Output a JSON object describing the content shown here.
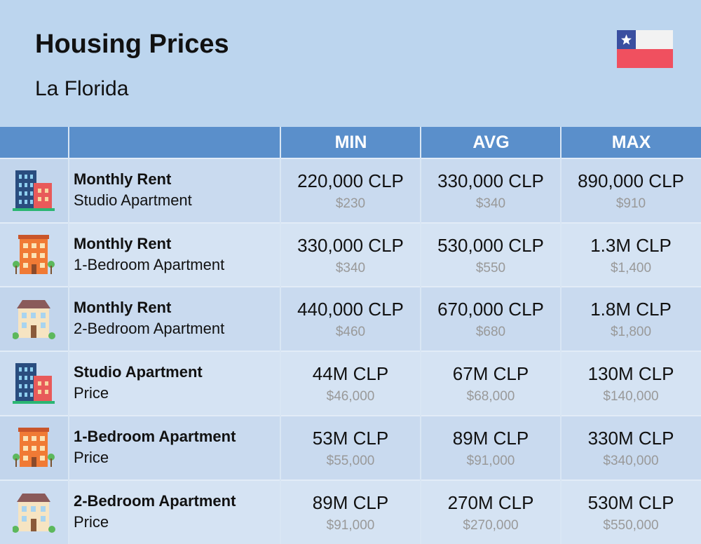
{
  "header": {
    "title": "Housing Prices",
    "subtitle": "La Florida"
  },
  "table": {
    "columns": [
      "MIN",
      "AVG",
      "MAX"
    ],
    "rows": [
      {
        "title": "Monthly Rent",
        "subtitle": "Studio Apartment",
        "cells": [
          {
            "local": "220,000 CLP",
            "usd": "$230"
          },
          {
            "local": "330,000 CLP",
            "usd": "$340"
          },
          {
            "local": "890,000 CLP",
            "usd": "$910"
          }
        ]
      },
      {
        "title": "Monthly Rent",
        "subtitle": "1-Bedroom Apartment",
        "cells": [
          {
            "local": "330,000 CLP",
            "usd": "$340"
          },
          {
            "local": "530,000 CLP",
            "usd": "$550"
          },
          {
            "local": "1.3M CLP",
            "usd": "$1,400"
          }
        ]
      },
      {
        "title": "Monthly Rent",
        "subtitle": "2-Bedroom Apartment",
        "cells": [
          {
            "local": "440,000 CLP",
            "usd": "$460"
          },
          {
            "local": "670,000 CLP",
            "usd": "$680"
          },
          {
            "local": "1.8M CLP",
            "usd": "$1,800"
          }
        ]
      },
      {
        "title": "Studio Apartment",
        "subtitle": "Price",
        "cells": [
          {
            "local": "44M CLP",
            "usd": "$46,000"
          },
          {
            "local": "67M CLP",
            "usd": "$68,000"
          },
          {
            "local": "130M CLP",
            "usd": "$140,000"
          }
        ]
      },
      {
        "title": "1-Bedroom Apartment",
        "subtitle": "Price",
        "cells": [
          {
            "local": "53M CLP",
            "usd": "$55,000"
          },
          {
            "local": "89M CLP",
            "usd": "$91,000"
          },
          {
            "local": "330M CLP",
            "usd": "$340,000"
          }
        ]
      },
      {
        "title": "2-Bedroom Apartment",
        "subtitle": "Price",
        "cells": [
          {
            "local": "89M CLP",
            "usd": "$91,000"
          },
          {
            "local": "270M CLP",
            "usd": "$270,000"
          },
          {
            "local": "530M CLP",
            "usd": "$550,000"
          }
        ]
      }
    ]
  }
}
